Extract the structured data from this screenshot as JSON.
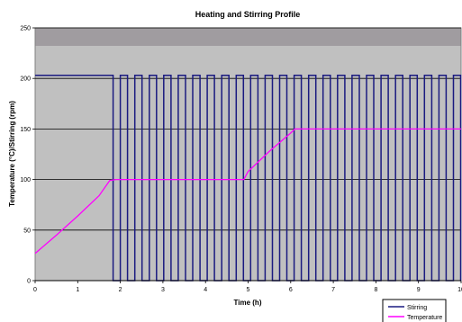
{
  "chart_data": {
    "type": "line",
    "title": "Heating and Stirring Profile",
    "xlabel": "Time (h)",
    "ylabel": "Temperature (°C)/Stirring (rpm)",
    "xlim": [
      0,
      10
    ],
    "ylim": [
      0,
      250
    ],
    "x_ticks": [
      "0",
      "1",
      "2",
      "3",
      "4",
      "5",
      "6",
      "7",
      "8",
      "9",
      "10"
    ],
    "y_ticks": [
      "0",
      "50",
      "100",
      "150",
      "200",
      "250"
    ],
    "grid": "horizontal",
    "legend_position": "bottom-right",
    "stirring_pulses": {
      "level": 203,
      "continuous_until": 1.83,
      "on_duration": 0.17,
      "off_duration": 0.17,
      "end": 10
    },
    "series": [
      {
        "name": "Stirring",
        "color": "#1a1a80",
        "values": []
      },
      {
        "name": "Temperature",
        "color": "#ff00ff",
        "x": [
          0,
          0.5,
          1.0,
          1.5,
          1.75,
          1.9,
          2.5,
          3.0,
          3.5,
          4.0,
          4.5,
          4.9,
          5.0,
          5.5,
          6.0,
          6.1,
          7,
          8,
          9,
          10
        ],
        "y": [
          27,
          45,
          64,
          84,
          99,
          100,
          100,
          100,
          100,
          100,
          100,
          100,
          108,
          128,
          146,
          150,
          150,
          150,
          150,
          150
        ]
      }
    ]
  }
}
